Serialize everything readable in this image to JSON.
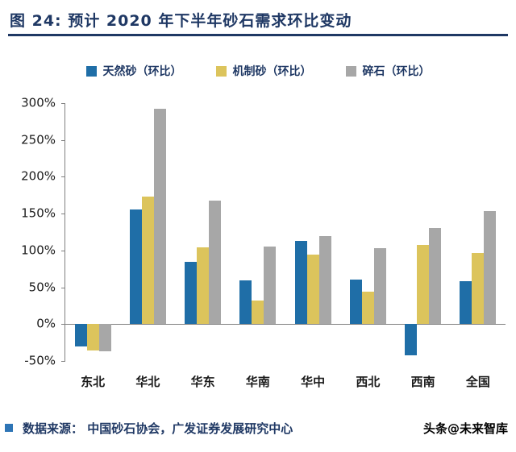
{
  "header": {
    "title": "图 24:  预计 2020 年下半年砂石需求环比变动"
  },
  "footer": {
    "source": "数据来源： 中国砂石协会，广发证券发展研究中心",
    "watermark": "头条@未来智库"
  },
  "colors": {
    "accent_navy": "#1F3864",
    "bullet_blue": "#2E75B6"
  },
  "chart_data": {
    "type": "bar",
    "title": "预计 2020 年下半年砂石需求环比变动",
    "categories": [
      "东北",
      "华北",
      "华东",
      "华南",
      "华中",
      "西北",
      "西南",
      "全国"
    ],
    "series": [
      {
        "name": "天然砂（环比）",
        "color": "#1F6EA7",
        "values": [
          -30,
          156,
          84,
          59,
          113,
          60,
          -42,
          58
        ]
      },
      {
        "name": "机制砂（环比）",
        "color": "#DCC45C",
        "values": [
          -36,
          173,
          104,
          32,
          94,
          44,
          107,
          97
        ]
      },
      {
        "name": "碎石（环比）",
        "color": "#A7A7A7",
        "values": [
          -37,
          292,
          168,
          105,
          119,
          103,
          130,
          153
        ]
      }
    ],
    "ylim": [
      -50,
      300
    ],
    "yticks": [
      300,
      250,
      200,
      150,
      100,
      50,
      0,
      -50
    ],
    "ytick_suffix": "%",
    "grid": false,
    "legend_position": "top",
    "xlabel": "",
    "ylabel": ""
  }
}
